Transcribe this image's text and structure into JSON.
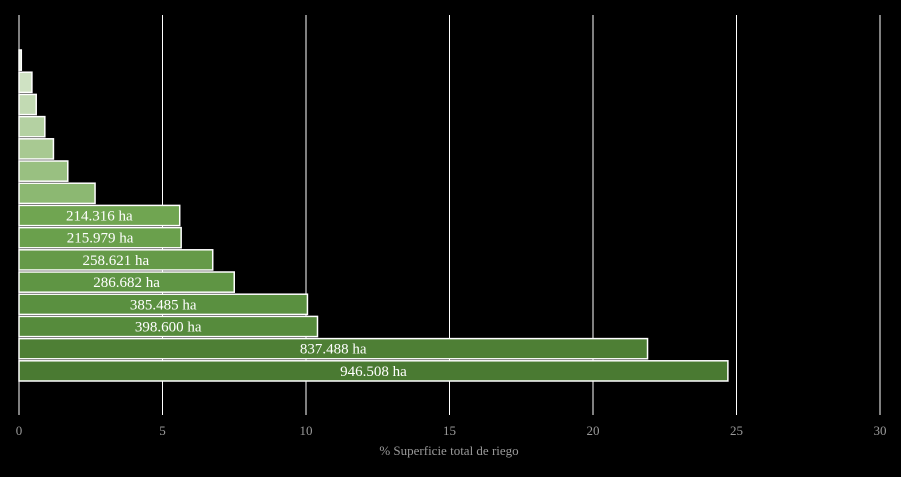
{
  "chart_data": {
    "type": "bar",
    "orientation": "horizontal",
    "xlabel": "% Superficie total de riego",
    "xlim": [
      0,
      30
    ],
    "xticks": [
      0,
      5,
      10,
      15,
      20,
      25,
      30
    ],
    "grid": "vertical",
    "bars": [
      {
        "value": 24.7,
        "label": "946.508 ha",
        "color": "#4a7a32"
      },
      {
        "value": 21.9,
        "label": "837.488 ha",
        "color": "#4e7f35"
      },
      {
        "value": 10.4,
        "label": "398.600 ha",
        "color": "#568b3c"
      },
      {
        "value": 10.05,
        "label": "385.485 ha",
        "color": "#5a9040"
      },
      {
        "value": 7.5,
        "label": "286.682 ha",
        "color": "#5f9544"
      },
      {
        "value": 6.75,
        "label": "258.621 ha",
        "color": "#659a48"
      },
      {
        "value": 5.65,
        "label": "215.979 ha",
        "color": "#6aa04c"
      },
      {
        "value": 5.6,
        "label": "214.316 ha",
        "color": "#70a551"
      },
      {
        "value": 2.65,
        "label": "",
        "color": "#8cb872"
      },
      {
        "value": 1.7,
        "label": "",
        "color": "#99c081"
      },
      {
        "value": 1.2,
        "label": "",
        "color": "#a8c992"
      },
      {
        "value": 0.9,
        "label": "",
        "color": "#b4d1a2"
      },
      {
        "value": 0.6,
        "label": "",
        "color": "#c2dab3"
      },
      {
        "value": 0.45,
        "label": "",
        "color": "#cfe2c3"
      },
      {
        "value": 0.08,
        "label": "",
        "color": "#dde9d4"
      }
    ]
  }
}
